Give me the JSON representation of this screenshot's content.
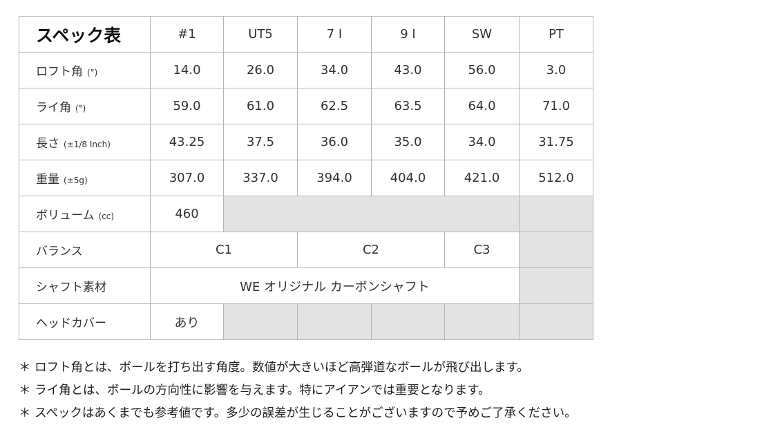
{
  "title": "スペック表",
  "columns": [
    "#1",
    "UT5",
    "7 I",
    "9 I",
    "SW",
    "PT"
  ],
  "rows": {
    "loft": {
      "label": "ロフト角",
      "unit": "(°)",
      "values": [
        "14.0",
        "26.0",
        "34.0",
        "43.0",
        "56.0",
        "3.0"
      ]
    },
    "lie": {
      "label": "ライ角",
      "unit": "(°)",
      "values": [
        "59.0",
        "61.0",
        "62.5",
        "63.5",
        "64.0",
        "71.0"
      ]
    },
    "length": {
      "label": "長さ",
      "unit": "(±1/8 Inch)",
      "values": [
        "43.25",
        "37.5",
        "36.0",
        "35.0",
        "34.0",
        "31.75"
      ]
    },
    "weight": {
      "label": "重量",
      "unit": "(±5g)",
      "values": [
        "307.0",
        "337.0",
        "394.0",
        "404.0",
        "421.0",
        "512.0"
      ]
    },
    "volume": {
      "label": "ボリューム",
      "unit": "(cc)",
      "values": [
        "460"
      ]
    },
    "balance": {
      "label": "バランス",
      "values": [
        "C1",
        "C2",
        "C3"
      ]
    },
    "shaft": {
      "label": "シャフト素材",
      "value": "WE オリジナル カーボンシャフト"
    },
    "headcover": {
      "label": "ヘッドカバー",
      "value": "あり"
    }
  },
  "notes": [
    "＊ ロフト角とは、ボールを打ち出す角度。数値が大きいほど高弾道なボールが飛び出します。",
    "＊ ライ角とは、ボールの方向性に影響を与えます。特にアイアンでは重要となります。",
    "＊ スペックはあくまでも参考値です。多少の誤差が生じることがございますので予めご了承ください。"
  ],
  "colors": {
    "empty_cell": "#e3e3e3",
    "border": "#b4b4b4"
  }
}
